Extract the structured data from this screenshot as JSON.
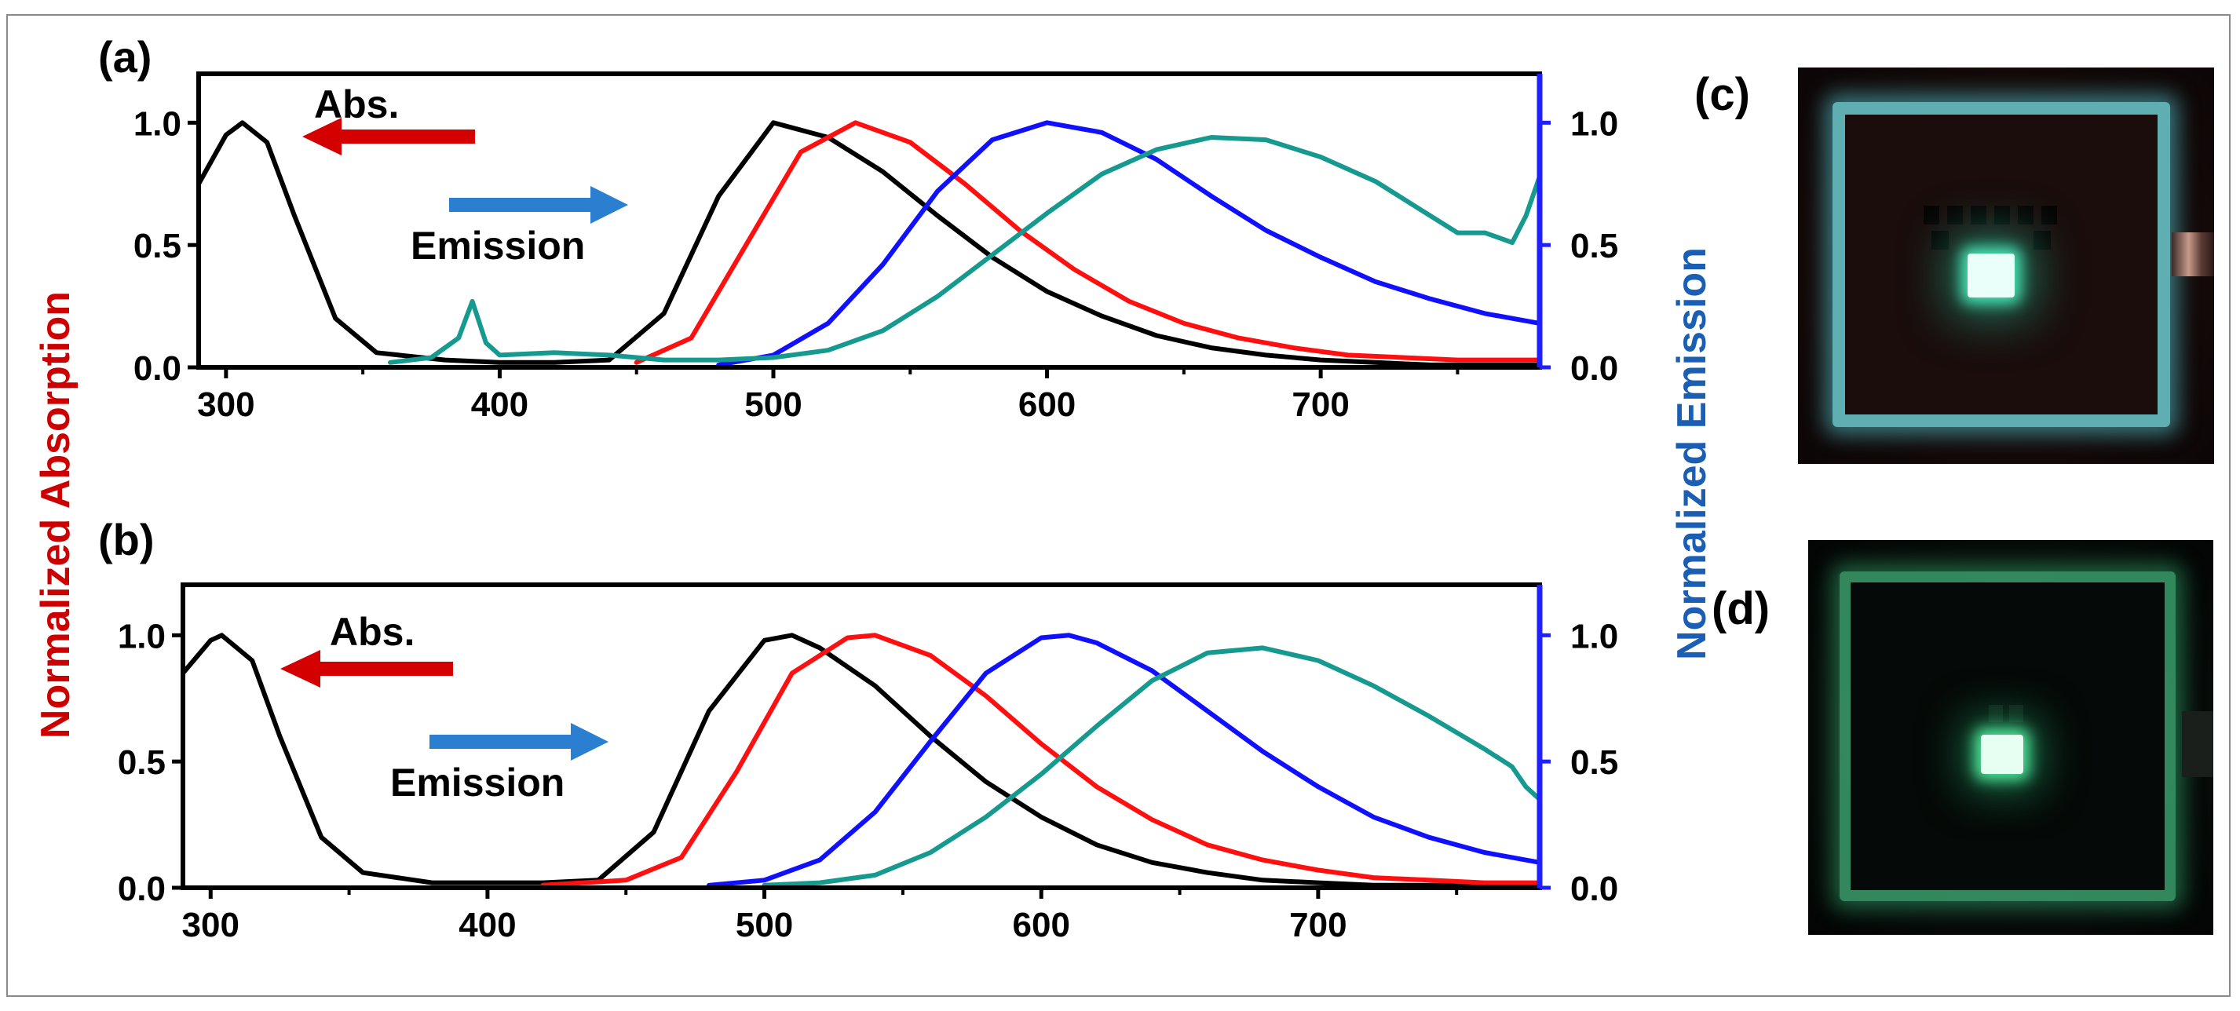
{
  "figure": {
    "y_left_label_part1": "Normalized",
    "y_left_label_part2": "Absorption",
    "y_right_label_part1": "Normalized",
    "y_right_label_part2": "Emission"
  },
  "colors": {
    "abs_arrow": "#d40000",
    "emission_arrow": "#2a7fd0",
    "left_label": "#cc0000",
    "right_label": "#1a5fb4",
    "right_axis": "#1f1fff",
    "s_black": "#000000",
    "s_red": "#ff1010",
    "s_blue": "#1010ff",
    "s_teal": "#169a90"
  },
  "panels": {
    "c": {
      "label": "(c)",
      "icon": "oled-device-photo-cyan"
    },
    "d": {
      "label": "(d)",
      "icon": "oled-device-photo-green"
    }
  },
  "chart_data": [
    {
      "type": "line",
      "panel_label": "(a)",
      "xlim": [
        290,
        780
      ],
      "x_ticks": [
        "300",
        "400",
        "500",
        "600",
        "700"
      ],
      "ylim_left": [
        0,
        1.2
      ],
      "ylim_right": [
        0,
        1.2
      ],
      "y_ticks_left": [
        "0.0",
        "0.5",
        "1.0"
      ],
      "y_ticks_right": [
        "0.0",
        "0.5",
        "1.0"
      ],
      "annotations": {
        "abs": "Abs.",
        "emission": "Emission"
      },
      "series": [
        {
          "name": "Absorption",
          "color": "#000000",
          "x": [
            290,
            300,
            306,
            315,
            325,
            340,
            355,
            380,
            400,
            420,
            440
          ],
          "y": [
            0.75,
            0.95,
            1.0,
            0.92,
            0.62,
            0.2,
            0.06,
            0.03,
            0.02,
            0.02,
            0.03
          ]
        },
        {
          "name": "Emission black",
          "color": "#000000",
          "x": [
            440,
            460,
            480,
            500,
            520,
            540,
            560,
            580,
            600,
            620,
            640,
            660,
            680,
            700,
            720,
            740,
            760,
            780
          ],
          "y": [
            0.03,
            0.22,
            0.7,
            1.0,
            0.94,
            0.8,
            0.62,
            0.45,
            0.31,
            0.21,
            0.13,
            0.08,
            0.05,
            0.03,
            0.02,
            0.01,
            0.01,
            0.01
          ]
        },
        {
          "name": "Emission red",
          "color": "#ff1010",
          "x": [
            450,
            470,
            490,
            510,
            530,
            550,
            570,
            590,
            610,
            630,
            650,
            670,
            690,
            710,
            730,
            750,
            780
          ],
          "y": [
            0.02,
            0.12,
            0.5,
            0.88,
            1.0,
            0.92,
            0.75,
            0.56,
            0.4,
            0.27,
            0.18,
            0.12,
            0.08,
            0.05,
            0.04,
            0.03,
            0.03
          ]
        },
        {
          "name": "Emission blue",
          "color": "#1010ff",
          "x": [
            480,
            500,
            520,
            540,
            560,
            580,
            600,
            620,
            640,
            660,
            680,
            700,
            720,
            740,
            760,
            780
          ],
          "y": [
            0.01,
            0.05,
            0.18,
            0.42,
            0.72,
            0.93,
            1.0,
            0.96,
            0.85,
            0.7,
            0.56,
            0.45,
            0.35,
            0.28,
            0.22,
            0.18
          ]
        },
        {
          "name": "Emission teal",
          "color": "#169a90",
          "x": [
            360,
            375,
            385,
            390,
            395,
            400,
            420,
            440,
            460,
            480,
            500,
            520,
            540,
            560,
            580,
            600,
            620,
            640,
            660,
            680,
            700,
            720,
            740,
            750,
            760,
            770,
            775,
            780
          ],
          "y": [
            0.02,
            0.04,
            0.12,
            0.27,
            0.1,
            0.05,
            0.06,
            0.05,
            0.03,
            0.03,
            0.04,
            0.07,
            0.15,
            0.29,
            0.46,
            0.63,
            0.79,
            0.89,
            0.94,
            0.93,
            0.86,
            0.76,
            0.62,
            0.55,
            0.55,
            0.51,
            0.62,
            0.78
          ]
        }
      ]
    },
    {
      "type": "line",
      "panel_label": "(b)",
      "xlim": [
        290,
        780
      ],
      "x_ticks": [
        "300",
        "400",
        "500",
        "600",
        "700"
      ],
      "ylim_left": [
        0,
        1.2
      ],
      "ylim_right": [
        0,
        1.2
      ],
      "y_ticks_left": [
        "0.0",
        "0.5",
        "1.0"
      ],
      "y_ticks_right": [
        "0.0",
        "0.5",
        "1.0"
      ],
      "annotations": {
        "abs": "Abs.",
        "emission": "Emission"
      },
      "series": [
        {
          "name": "Absorption",
          "color": "#000000",
          "x": [
            290,
            300,
            304,
            315,
            325,
            340,
            355,
            380,
            400,
            420,
            440
          ],
          "y": [
            0.85,
            0.98,
            1.0,
            0.9,
            0.6,
            0.2,
            0.06,
            0.02,
            0.02,
            0.02,
            0.03
          ]
        },
        {
          "name": "Emission black",
          "color": "#000000",
          "x": [
            440,
            460,
            480,
            500,
            510,
            520,
            540,
            560,
            580,
            600,
            620,
            640,
            660,
            680,
            700,
            720,
            740,
            760,
            780
          ],
          "y": [
            0.03,
            0.22,
            0.7,
            0.98,
            1.0,
            0.95,
            0.8,
            0.6,
            0.42,
            0.28,
            0.17,
            0.1,
            0.06,
            0.03,
            0.02,
            0.01,
            0.01,
            0.01,
            0.01
          ]
        },
        {
          "name": "Emission red",
          "color": "#ff1010",
          "x": [
            420,
            450,
            470,
            490,
            510,
            530,
            540,
            560,
            580,
            600,
            620,
            640,
            660,
            680,
            700,
            720,
            740,
            760,
            780
          ],
          "y": [
            0.01,
            0.03,
            0.12,
            0.46,
            0.85,
            0.99,
            1.0,
            0.92,
            0.76,
            0.57,
            0.4,
            0.27,
            0.17,
            0.11,
            0.07,
            0.04,
            0.03,
            0.02,
            0.02
          ]
        },
        {
          "name": "Emission blue",
          "color": "#1010ff",
          "x": [
            480,
            500,
            520,
            540,
            560,
            580,
            600,
            610,
            620,
            640,
            660,
            680,
            700,
            720,
            740,
            760,
            780
          ],
          "y": [
            0.01,
            0.03,
            0.11,
            0.3,
            0.58,
            0.85,
            0.99,
            1.0,
            0.97,
            0.86,
            0.7,
            0.54,
            0.4,
            0.28,
            0.2,
            0.14,
            0.1
          ]
        },
        {
          "name": "Emission teal",
          "color": "#169a90",
          "x": [
            500,
            520,
            540,
            560,
            580,
            600,
            620,
            640,
            660,
            680,
            700,
            720,
            740,
            760,
            770,
            775,
            780
          ],
          "y": [
            0.01,
            0.02,
            0.05,
            0.14,
            0.28,
            0.45,
            0.64,
            0.82,
            0.93,
            0.95,
            0.9,
            0.8,
            0.68,
            0.55,
            0.48,
            0.4,
            0.35
          ]
        }
      ]
    }
  ]
}
